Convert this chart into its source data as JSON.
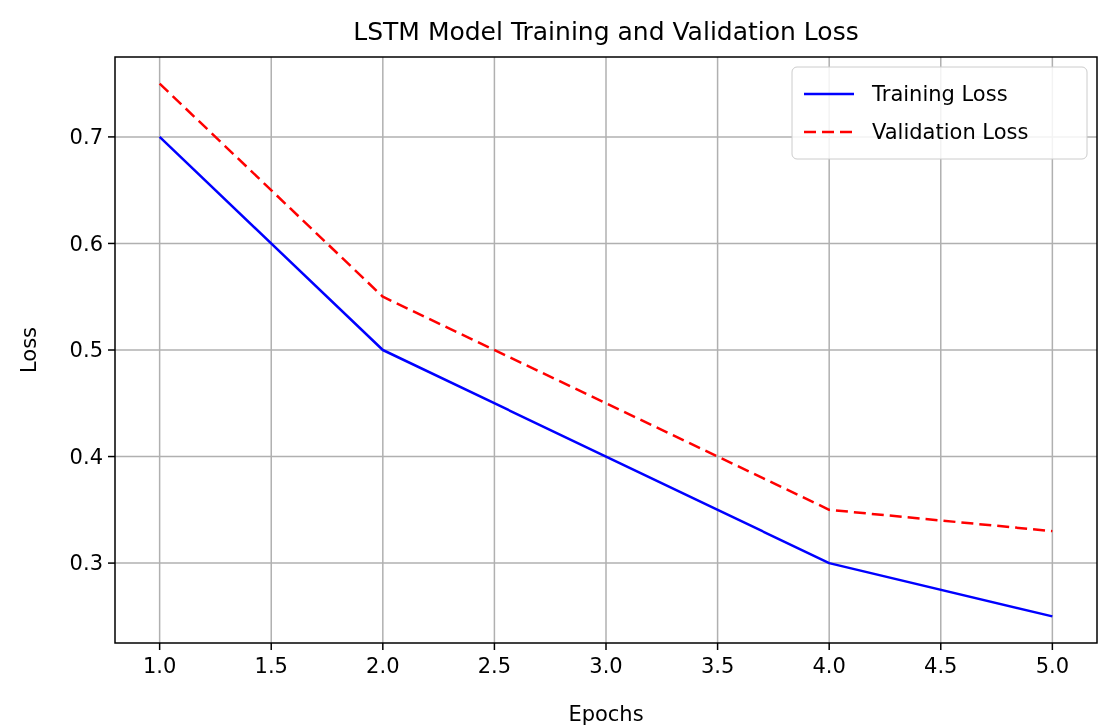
{
  "chart_data": {
    "type": "line",
    "title": "LSTM Model Training and Validation Loss",
    "xlabel": "Epochs",
    "ylabel": "Loss",
    "x": [
      1,
      2,
      3,
      4,
      5
    ],
    "series": [
      {
        "name": "Training Loss",
        "color": "#0000ff",
        "values": [
          0.7,
          0.5,
          0.4,
          0.3,
          0.25
        ],
        "line_style": "solid"
      },
      {
        "name": "Validation Loss",
        "color": "#ff0000",
        "values": [
          0.75,
          0.55,
          0.45,
          0.35,
          0.33
        ],
        "line_style": "dashed"
      }
    ],
    "xlim": [
      0.8,
      5.2
    ],
    "xticks": [
      {
        "value": 1,
        "label": "1.0"
      },
      {
        "value": 1.5,
        "label": "1.5"
      },
      {
        "value": 2,
        "label": "2.0"
      },
      {
        "value": 2.5,
        "label": "2.5"
      },
      {
        "value": 3,
        "label": "3.0"
      },
      {
        "value": 3.5,
        "label": "3.5"
      },
      {
        "value": 4,
        "label": "4.0"
      },
      {
        "value": 4.5,
        "label": "4.5"
      },
      {
        "value": 5,
        "label": "5.0"
      }
    ],
    "ylim": [
      0.225,
      0.775
    ],
    "yticks": [
      0.3,
      0.4,
      0.5,
      0.6,
      0.7
    ],
    "grid": true,
    "legend": "top right"
  }
}
